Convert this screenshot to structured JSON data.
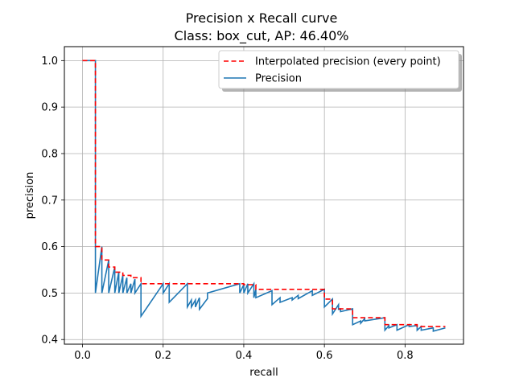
{
  "chart_data": {
    "type": "line",
    "title": "Precision x Recall curve",
    "subtitle": "Class: box_cut, AP: 46.40%",
    "xlabel": "recall",
    "ylabel": "precision",
    "xlim": [
      -0.045,
      0.945
    ],
    "ylim": [
      0.39,
      1.03
    ],
    "xticks": [
      0.0,
      0.2,
      0.4,
      0.6,
      0.8
    ],
    "xtick_labels": [
      "0.0",
      "0.2",
      "0.4",
      "0.6",
      "0.8"
    ],
    "yticks": [
      0.4,
      0.5,
      0.6,
      0.7,
      0.8,
      0.9,
      1.0
    ],
    "ytick_labels": [
      "0.4",
      "0.5",
      "0.6",
      "0.7",
      "0.8",
      "0.9",
      "1.0"
    ],
    "grid": true,
    "legend_position": "top-right",
    "series": [
      {
        "name": "Interpolated precision (every point)",
        "style": "dashed",
        "color": "#ff0000",
        "x": [
          0.0,
          0.032,
          0.032,
          0.048,
          0.048,
          0.065,
          0.065,
          0.08,
          0.08,
          0.1,
          0.1,
          0.12,
          0.12,
          0.145,
          0.145,
          0.4,
          0.4,
          0.43,
          0.43,
          0.6,
          0.6,
          0.62,
          0.62,
          0.67,
          0.67,
          0.75,
          0.75,
          0.83,
          0.83,
          0.9
        ],
        "y": [
          1.0,
          1.0,
          0.6,
          0.6,
          0.571,
          0.571,
          0.556,
          0.556,
          0.545,
          0.545,
          0.538,
          0.538,
          0.533,
          0.533,
          0.52,
          0.52,
          0.518,
          0.518,
          0.508,
          0.508,
          0.487,
          0.487,
          0.466,
          0.466,
          0.447,
          0.447,
          0.432,
          0.432,
          0.428,
          0.428
        ]
      },
      {
        "name": "Precision",
        "style": "solid",
        "color": "#1f77b4",
        "x": [
          0.0,
          0.032,
          0.032,
          0.048,
          0.048,
          0.065,
          0.065,
          0.08,
          0.08,
          0.09,
          0.09,
          0.1,
          0.1,
          0.11,
          0.11,
          0.12,
          0.12,
          0.13,
          0.13,
          0.145,
          0.145,
          0.2,
          0.2,
          0.215,
          0.215,
          0.26,
          0.26,
          0.27,
          0.27,
          0.28,
          0.28,
          0.29,
          0.29,
          0.31,
          0.31,
          0.39,
          0.39,
          0.4,
          0.4,
          0.41,
          0.41,
          0.425,
          0.425,
          0.43,
          0.43,
          0.47,
          0.47,
          0.49,
          0.49,
          0.52,
          0.52,
          0.535,
          0.535,
          0.57,
          0.57,
          0.6,
          0.6,
          0.62,
          0.62,
          0.635,
          0.635,
          0.64,
          0.64,
          0.67,
          0.67,
          0.69,
          0.69,
          0.7,
          0.7,
          0.75,
          0.75,
          0.76,
          0.76,
          0.78,
          0.78,
          0.81,
          0.81,
          0.83,
          0.83,
          0.84,
          0.84,
          0.87,
          0.87,
          0.9
        ],
        "y": [
          1.0,
          1.0,
          0.5,
          0.6,
          0.5,
          0.571,
          0.5,
          0.556,
          0.5,
          0.545,
          0.5,
          0.538,
          0.5,
          0.533,
          0.5,
          0.52,
          0.5,
          0.53,
          0.5,
          0.52,
          0.45,
          0.52,
          0.5,
          0.52,
          0.48,
          0.52,
          0.47,
          0.485,
          0.47,
          0.485,
          0.47,
          0.49,
          0.465,
          0.488,
          0.5,
          0.52,
          0.5,
          0.518,
          0.5,
          0.52,
          0.5,
          0.52,
          0.49,
          0.508,
          0.49,
          0.505,
          0.475,
          0.49,
          0.48,
          0.49,
          0.485,
          0.495,
          0.488,
          0.505,
          0.495,
          0.508,
          0.47,
          0.487,
          0.455,
          0.475,
          0.465,
          0.466,
          0.46,
          0.466,
          0.432,
          0.44,
          0.435,
          0.445,
          0.44,
          0.447,
          0.42,
          0.43,
          0.425,
          0.432,
          0.42,
          0.432,
          0.428,
          0.43,
          0.42,
          0.428,
          0.42,
          0.425,
          0.418,
          0.425
        ]
      }
    ]
  }
}
